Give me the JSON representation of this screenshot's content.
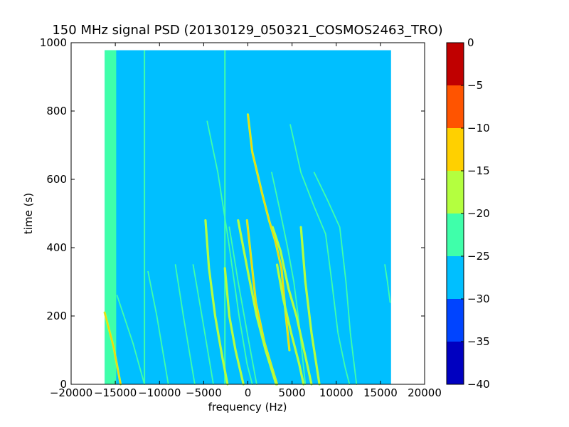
{
  "chart_data": {
    "type": "heatmap",
    "title": "150 MHz signal PSD (20130129_050321_COSMOS2463_TRO)",
    "xlabel": "frequency (Hz)",
    "ylabel": "time (s)",
    "xlim": [
      -20000,
      20000
    ],
    "ylim": [
      0,
      1000
    ],
    "x_ticks": [
      -20000,
      -15000,
      -10000,
      -5000,
      0,
      5000,
      10000,
      15000,
      20000
    ],
    "x_tick_labels": [
      "−20000",
      "−15000",
      "−10000",
      "−5000",
      "0",
      "5000",
      "10000",
      "15000",
      "20000"
    ],
    "y_ticks": [
      0,
      200,
      400,
      600,
      800,
      1000
    ],
    "y_tick_labels": [
      "0",
      "200",
      "400",
      "600",
      "800",
      "1000"
    ],
    "data_extent": {
      "x": [
        -16200,
        16200
      ],
      "y": [
        0,
        978
      ]
    },
    "background_level": -27.5,
    "edge_band": {
      "x": [
        -16200,
        -14900
      ],
      "level": -22.5
    },
    "colorbar": {
      "levels": [
        -40,
        -35,
        -30,
        -25,
        -20,
        -15,
        -10,
        -5,
        0
      ],
      "tick_labels": [
        "−40",
        "−35",
        "−30",
        "−25",
        "−20",
        "−15",
        "−10",
        "−5",
        "0"
      ],
      "colors": [
        "#0000c0",
        "#0044ff",
        "#00bfff",
        "#3fffaa",
        "#b4ff3f",
        "#ffd000",
        "#ff5400",
        "#c00000"
      ]
    },
    "vertical_lines": [
      {
        "x": -11700,
        "y": [
          0,
          978
        ],
        "level": -22.5
      },
      {
        "x": -2600,
        "y": [
          0,
          978
        ],
        "level": -22.5
      }
    ],
    "tracks": [
      {
        "points": [
          [
            -16200,
            210
          ],
          [
            -15200,
            110
          ],
          [
            -14400,
            0
          ]
        ],
        "level": -15
      },
      {
        "points": [
          [
            -14800,
            260
          ],
          [
            -13000,
            120
          ],
          [
            -11700,
            0
          ]
        ],
        "level": -22.5
      },
      {
        "points": [
          [
            -11300,
            330
          ],
          [
            -10300,
            200
          ],
          [
            -9000,
            0
          ]
        ],
        "level": -22.5
      },
      {
        "points": [
          [
            -8200,
            350
          ],
          [
            -7300,
            200
          ],
          [
            -6000,
            0
          ]
        ],
        "level": -22.5
      },
      {
        "points": [
          [
            -6200,
            350
          ],
          [
            -5200,
            200
          ],
          [
            -3900,
            0
          ]
        ],
        "level": -22.5
      },
      {
        "points": [
          [
            -4800,
            480
          ],
          [
            -4400,
            340
          ],
          [
            -3700,
            200
          ],
          [
            -2900,
            80
          ],
          [
            -2300,
            0
          ]
        ],
        "level": -17.5
      },
      {
        "points": [
          [
            -4600,
            770
          ],
          [
            -3400,
            620
          ],
          [
            -2200,
            420
          ],
          [
            -1000,
            200
          ],
          [
            -100,
            60
          ],
          [
            500,
            0
          ]
        ],
        "level": -22.5
      },
      {
        "points": [
          [
            -2600,
            340
          ],
          [
            -2100,
            200
          ],
          [
            -1400,
            100
          ],
          [
            -500,
            0
          ]
        ],
        "level": -17.5
      },
      {
        "points": [
          [
            -2100,
            460
          ],
          [
            -1100,
            300
          ],
          [
            0,
            140
          ],
          [
            1000,
            0
          ]
        ],
        "level": -22.5
      },
      {
        "points": [
          [
            0,
            790
          ],
          [
            500,
            680
          ],
          [
            1600,
            560
          ],
          [
            2400,
            480
          ],
          [
            3100,
            420
          ],
          [
            3800,
            340
          ],
          [
            4300,
            200
          ],
          [
            4700,
            100
          ]
        ],
        "level": -12.5
      },
      {
        "points": [
          [
            -100,
            480
          ],
          [
            400,
            360
          ],
          [
            900,
            240
          ],
          [
            1900,
            120
          ],
          [
            3300,
            0
          ]
        ],
        "level": -12.5
      },
      {
        "points": [
          [
            -1100,
            480
          ],
          [
            0,
            330
          ],
          [
            1000,
            200
          ],
          [
            2000,
            100
          ],
          [
            3200,
            0
          ]
        ],
        "level": -17.5
      },
      {
        "points": [
          [
            2700,
            620
          ],
          [
            3700,
            500
          ],
          [
            4500,
            400
          ],
          [
            5200,
            300
          ],
          [
            5700,
            200
          ],
          [
            6500,
            0
          ]
        ],
        "level": -22.5
      },
      {
        "points": [
          [
            2800,
            460
          ],
          [
            3700,
            390
          ],
          [
            4600,
            280
          ],
          [
            5500,
            200
          ],
          [
            6700,
            60
          ],
          [
            7200,
            0
          ]
        ],
        "level": -17.5
      },
      {
        "points": [
          [
            3300,
            350
          ],
          [
            4000,
            250
          ],
          [
            4900,
            150
          ],
          [
            5800,
            60
          ],
          [
            6300,
            0
          ]
        ],
        "level": -17.5
      },
      {
        "points": [
          [
            4800,
            760
          ],
          [
            6000,
            620
          ],
          [
            7500,
            520
          ],
          [
            8800,
            440
          ],
          [
            9500,
            300
          ],
          [
            10200,
            150
          ],
          [
            11000,
            50
          ],
          [
            11500,
            0
          ]
        ],
        "level": -22.5
      },
      {
        "points": [
          [
            6000,
            460
          ],
          [
            6500,
            300
          ],
          [
            7200,
            150
          ],
          [
            8100,
            0
          ]
        ],
        "level": -17.5
      },
      {
        "points": [
          [
            7500,
            620
          ],
          [
            9000,
            540
          ],
          [
            10400,
            460
          ],
          [
            11100,
            300
          ],
          [
            11600,
            150
          ],
          [
            12300,
            0
          ]
        ],
        "level": -22.5
      },
      {
        "points": [
          [
            15500,
            350
          ],
          [
            15800,
            300
          ],
          [
            16100,
            240
          ]
        ],
        "level": -22.5
      }
    ]
  }
}
